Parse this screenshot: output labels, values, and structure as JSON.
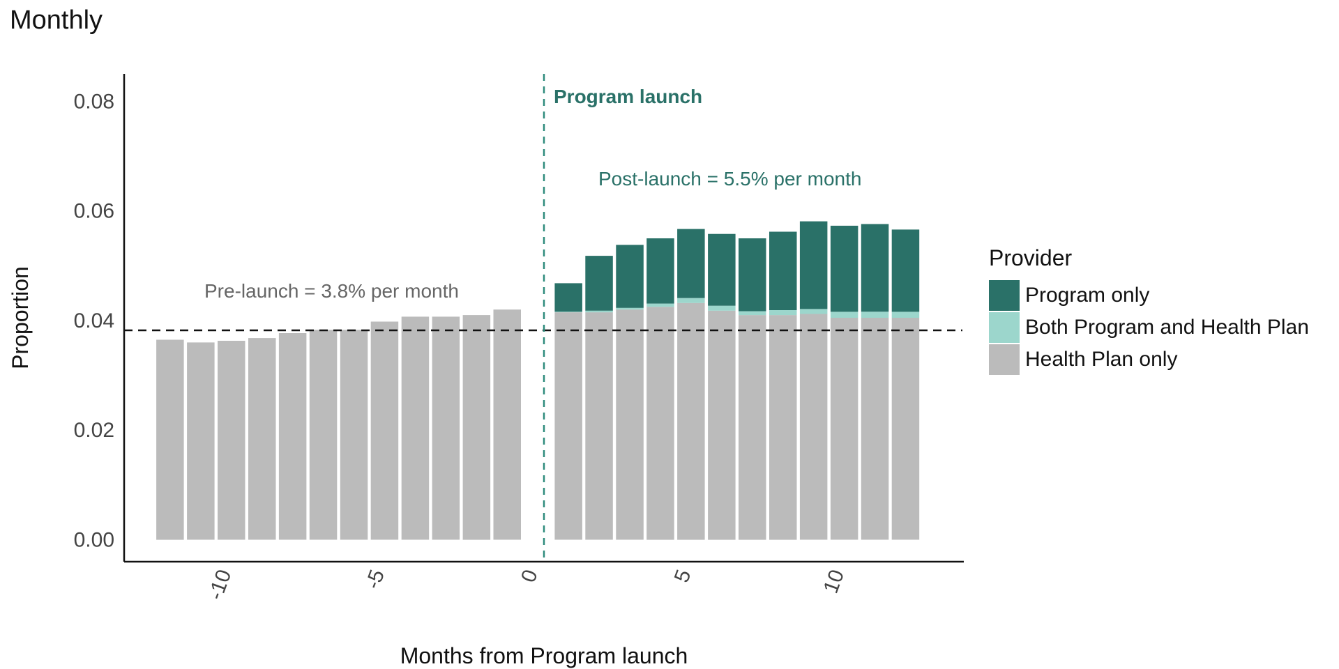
{
  "chart_data": {
    "type": "bar",
    "stacked": true,
    "title": "Monthly",
    "xlabel": "Months from Program launch",
    "ylabel": "Proportion",
    "x": [
      -12,
      -11,
      -10,
      -9,
      -8,
      -7,
      -6,
      -5,
      -4,
      -3,
      -2,
      -1,
      1,
      2,
      3,
      4,
      5,
      6,
      7,
      8,
      9,
      10,
      11,
      12
    ],
    "series": [
      {
        "name": "Health Plan only",
        "color": "#bbbbbb",
        "values": [
          0.0365,
          0.036,
          0.0363,
          0.0368,
          0.0377,
          0.0383,
          0.0383,
          0.0398,
          0.0407,
          0.0407,
          0.041,
          0.042,
          0.0415,
          0.0415,
          0.042,
          0.0425,
          0.0432,
          0.0418,
          0.041,
          0.041,
          0.0412,
          0.0405,
          0.0405,
          0.0405
        ]
      },
      {
        "name": "Both Program and Health Plan",
        "color": "#9cd6cc",
        "values": [
          0,
          0,
          0,
          0,
          0,
          0,
          0,
          0,
          0,
          0,
          0,
          0,
          0.0001,
          0.0003,
          0.0003,
          0.0006,
          0.0009,
          0.0009,
          0.0007,
          0.0009,
          0.0009,
          0.0011,
          0.0011,
          0.0011
        ]
      },
      {
        "name": "Program only",
        "color": "#2a7168",
        "values": [
          0,
          0,
          0,
          0,
          0,
          0,
          0,
          0,
          0,
          0,
          0,
          0,
          0.0052,
          0.01,
          0.0115,
          0.0119,
          0.0126,
          0.0131,
          0.0133,
          0.0143,
          0.016,
          0.0157,
          0.016,
          0.015
        ]
      }
    ],
    "xticks": [
      -10,
      -5,
      0,
      5,
      10
    ],
    "xlim": [
      -13.5,
      13.9
    ],
    "yticks": [
      0.0,
      0.02,
      0.04,
      0.06,
      0.08
    ],
    "ytick_labels": [
      "0.00",
      "0.02",
      "0.04",
      "0.06",
      "0.08"
    ],
    "ylim": [
      -0.004,
      0.085
    ],
    "reference_lines": {
      "launch": {
        "x": 0,
        "label": "Program launch",
        "color": "#2e8b7c"
      },
      "pre_launch_rate": {
        "y": 0.038,
        "label": "Pre-launch = 3.8% per month",
        "color": "#000000"
      },
      "post_launch_rate": {
        "y": 0.055,
        "label": "Post-launch = 5.5% per month"
      }
    },
    "legend": {
      "title": "Provider",
      "position": "right",
      "order": [
        "Program only",
        "Both Program and Health Plan",
        "Health Plan only"
      ]
    },
    "grid": false
  }
}
